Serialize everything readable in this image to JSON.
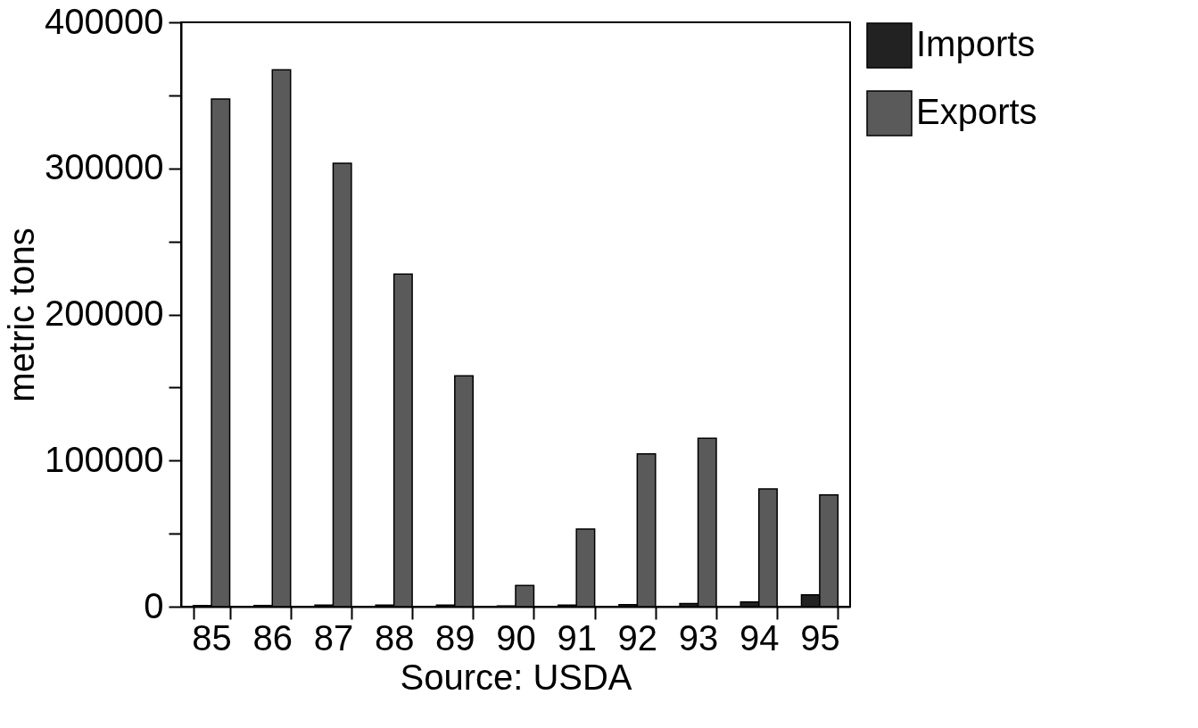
{
  "chart_data": {
    "type": "bar",
    "categories": [
      "85",
      "86",
      "87",
      "88",
      "89",
      "90",
      "91",
      "92",
      "93",
      "94",
      "95"
    ],
    "series": [
      {
        "name": "Imports",
        "color": "#222222",
        "values": [
          800,
          800,
          1000,
          1000,
          1000,
          500,
          1000,
          1300,
          2200,
          3200,
          8100
        ]
      },
      {
        "name": "Exports",
        "color": "#5a5a5a",
        "values": [
          347500,
          367500,
          303500,
          227600,
          158000,
          14500,
          53100,
          104600,
          115200,
          80600,
          76500
        ]
      }
    ],
    "ylabel": "metric tons",
    "annotations": [
      "Source: USDA"
    ],
    "ylim": [
      0,
      400000
    ],
    "yticks": [
      0,
      {
        "value": 50000,
        "label": null
      },
      100000,
      {
        "value": 150000,
        "label": null
      },
      200000,
      {
        "value": 250000,
        "label": null
      },
      300000,
      {
        "value": 350000,
        "label": null
      },
      400000
    ],
    "grid": false,
    "legend": "right"
  }
}
